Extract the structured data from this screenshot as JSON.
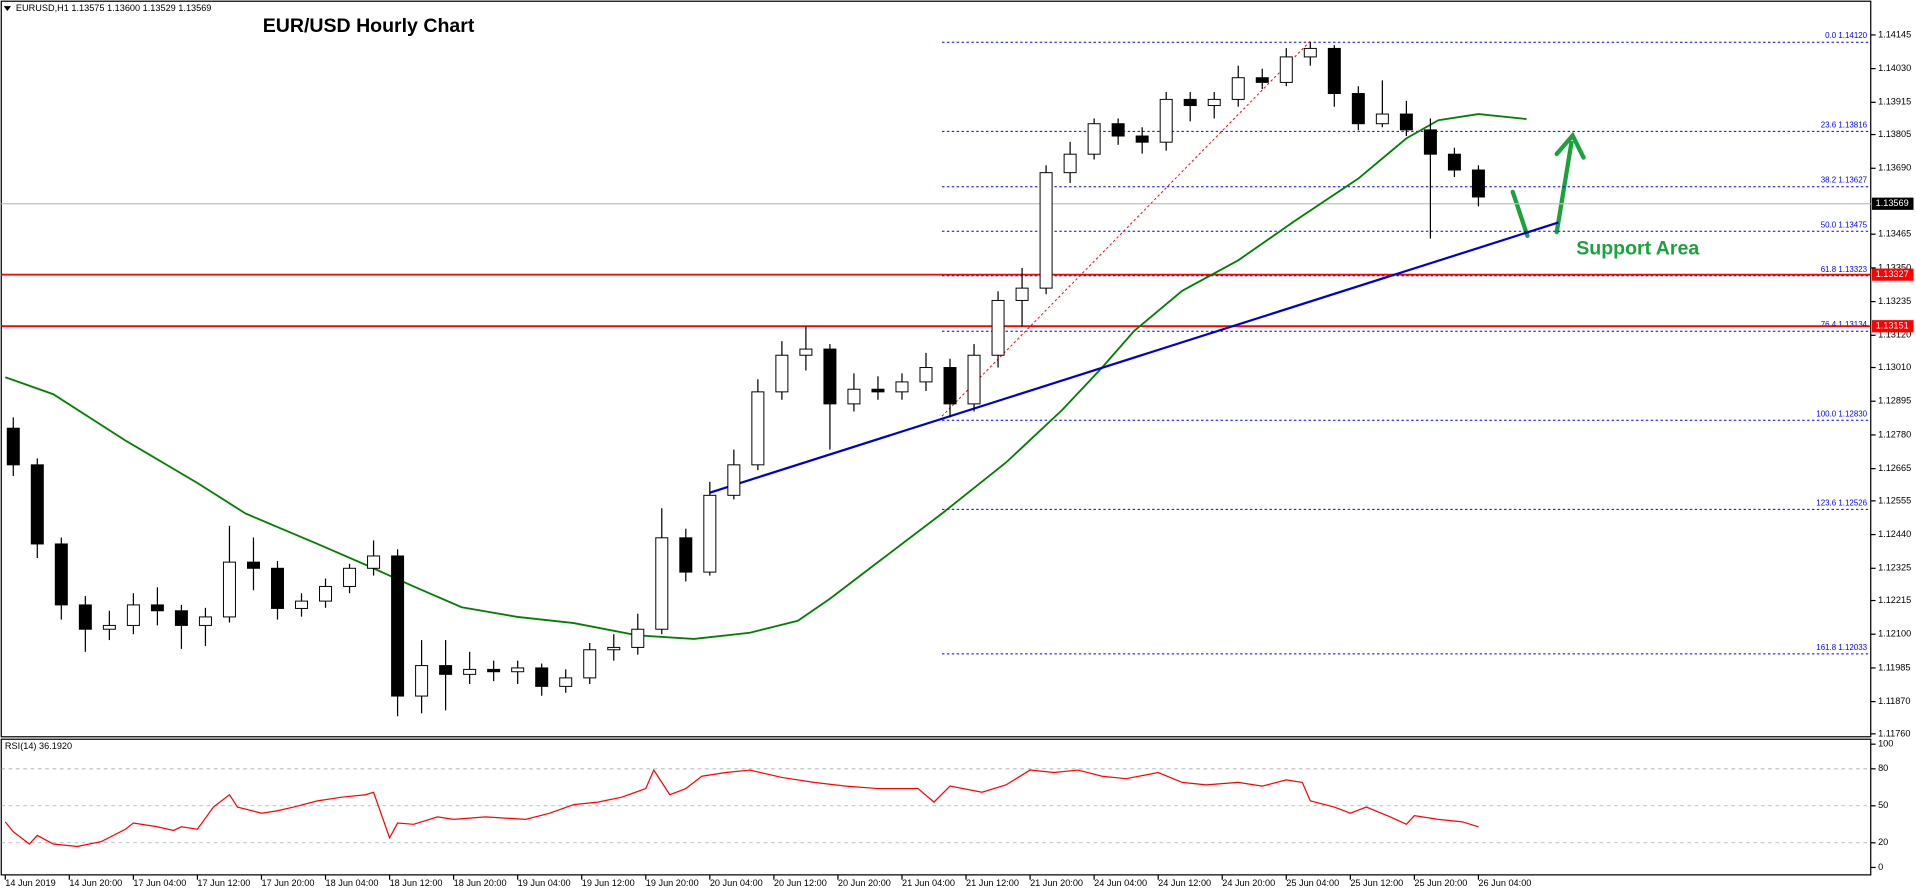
{
  "chart_data": {
    "type": "candlestick",
    "title": "EUR/USD Hourly Chart",
    "header": "EURUSD,H1  1.13575 1.13600 1.13529 1.13569",
    "annotation": "Support Area",
    "xlim": [
      -0.5,
      233
    ],
    "ylim": [
      1.1175,
      1.1426
    ],
    "xticks": [
      {
        "value": 0,
        "label": "14 Jun 2019"
      },
      {
        "value": 8,
        "label": "14 Jun 20:00"
      },
      {
        "value": 16,
        "label": "17 Jun 04:00"
      },
      {
        "value": 24,
        "label": "17 Jun 12:00"
      },
      {
        "value": 32,
        "label": "17 Jun 20:00"
      },
      {
        "value": 40,
        "label": "18 Jun 04:00"
      },
      {
        "value": 48,
        "label": "18 Jun 12:00"
      },
      {
        "value": 56,
        "label": "18 Jun 20:00"
      },
      {
        "value": 64,
        "label": "19 Jun 04:00"
      },
      {
        "value": 72,
        "label": "19 Jun 12:00"
      },
      {
        "value": 80,
        "label": "19 Jun 20:00"
      },
      {
        "value": 88,
        "label": "20 Jun 04:00"
      },
      {
        "value": 96,
        "label": "20 Jun 12:00"
      },
      {
        "value": 104,
        "label": "20 Jun 20:00"
      },
      {
        "value": 112,
        "label": "21 Jun 04:00"
      },
      {
        "value": 120,
        "label": "21 Jun 12:00"
      },
      {
        "value": 128,
        "label": "21 Jun 20:00"
      },
      {
        "value": 136,
        "label": "24 Jun 04:00"
      },
      {
        "value": 144,
        "label": "24 Jun 12:00"
      },
      {
        "value": 152,
        "label": "24 Jun 20:00"
      },
      {
        "value": 160,
        "label": "25 Jun 04:00"
      },
      {
        "value": 168,
        "label": "25 Jun 12:00"
      },
      {
        "value": 176,
        "label": "25 Jun 20:00"
      },
      {
        "value": 184,
        "label": "26 Jun 04:00"
      }
    ],
    "yticks": [
      1.14145,
      {
        "value": 1.1403,
        "label": "1.14030"
      },
      1.13915,
      1.13805,
      {
        "value": 1.1369,
        "label": "1.13690"
      },
      1.13465,
      {
        "value": 1.1335,
        "label": "1.13350"
      },
      1.13235,
      {
        "value": 1.1312,
        "label": "1.13120"
      },
      {
        "value": 1.1301,
        "label": "1.13010"
      },
      1.12895,
      {
        "value": 1.1278,
        "label": "1.12780"
      },
      1.12665,
      1.12555,
      {
        "value": 1.1244,
        "label": "1.12440"
      },
      1.12325,
      1.12215,
      {
        "value": 1.121,
        "label": "1.12100"
      },
      1.11985,
      {
        "value": 1.1187,
        "label": "1.11870"
      },
      {
        "value": 1.1176,
        "label": "1.11760"
      }
    ],
    "up_color": "#ffffff",
    "down_color": "#000000",
    "ohlc": [
      [
        1.12803,
        1.1284,
        1.1264,
        1.12678
      ],
      [
        1.12678,
        1.127,
        1.1236,
        1.12408
      ],
      [
        1.12408,
        1.1243,
        1.1215,
        1.122
      ],
      [
        1.122,
        1.1223,
        1.1204,
        1.12117
      ],
      [
        1.12117,
        1.1218,
        1.1208,
        1.1213
      ],
      [
        1.1213,
        1.1224,
        1.121,
        1.122
      ],
      [
        1.122,
        1.1226,
        1.1213,
        1.1218
      ],
      [
        1.1218,
        1.122,
        1.1205,
        1.1213
      ],
      [
        1.1213,
        1.1219,
        1.1206,
        1.12159
      ],
      [
        1.12159,
        1.1247,
        1.1214,
        1.12346
      ],
      [
        1.12346,
        1.1243,
        1.1225,
        1.12325
      ],
      [
        1.12325,
        1.1235,
        1.1215,
        1.12188
      ],
      [
        1.12188,
        1.1224,
        1.1216,
        1.12213
      ],
      [
        1.12213,
        1.1229,
        1.1219,
        1.12263
      ],
      [
        1.12263,
        1.1234,
        1.1224,
        1.12325
      ],
      [
        1.12325,
        1.1242,
        1.123,
        1.12367
      ],
      [
        1.12367,
        1.1239,
        1.1182,
        1.11889
      ],
      [
        1.11889,
        1.1208,
        1.1183,
        1.11993
      ],
      [
        1.11993,
        1.1208,
        1.1184,
        1.11963
      ],
      [
        1.11963,
        1.1204,
        1.1193,
        1.1198
      ],
      [
        1.1198,
        1.1201,
        1.1194,
        1.11972
      ],
      [
        1.11972,
        1.1201,
        1.1193,
        1.11985
      ],
      [
        1.11985,
        1.12,
        1.1189,
        1.11922
      ],
      [
        1.11922,
        1.1198,
        1.119,
        1.11951
      ],
      [
        1.11951,
        1.1207,
        1.1193,
        1.12047
      ],
      [
        1.12047,
        1.121,
        1.1201,
        1.12055
      ],
      [
        1.12055,
        1.1217,
        1.1203,
        1.12117
      ],
      [
        1.12117,
        1.1253,
        1.121,
        1.12429
      ],
      [
        1.12429,
        1.1246,
        1.1228,
        1.12312
      ],
      [
        1.12312,
        1.1262,
        1.123,
        1.12574
      ],
      [
        1.12574,
        1.1273,
        1.1256,
        1.12678
      ],
      [
        1.12678,
        1.1297,
        1.1266,
        1.12927
      ],
      [
        1.12927,
        1.131,
        1.129,
        1.13052
      ],
      [
        1.13052,
        1.1315,
        1.13,
        1.13073
      ],
      [
        1.13073,
        1.1309,
        1.1273,
        1.12886
      ],
      [
        1.12886,
        1.1299,
        1.1286,
        1.12936
      ],
      [
        1.12936,
        1.1298,
        1.129,
        1.12927
      ],
      [
        1.12927,
        1.1299,
        1.129,
        1.12961
      ],
      [
        1.12961,
        1.1306,
        1.1293,
        1.1301
      ],
      [
        1.1301,
        1.1304,
        1.1284,
        1.12886
      ],
      [
        1.12886,
        1.1309,
        1.1286,
        1.13052
      ],
      [
        1.13052,
        1.1327,
        1.1301,
        1.13239
      ],
      [
        1.13239,
        1.1335,
        1.1315,
        1.13281
      ],
      [
        1.13281,
        1.137,
        1.1326,
        1.13675
      ],
      [
        1.13675,
        1.1378,
        1.1364,
        1.13738
      ],
      [
        1.13738,
        1.1386,
        1.1372,
        1.13842
      ],
      [
        1.13842,
        1.1386,
        1.1377,
        1.138
      ],
      [
        1.138,
        1.1383,
        1.1374,
        1.13779
      ],
      [
        1.13779,
        1.1395,
        1.1375,
        1.13925
      ],
      [
        1.13925,
        1.1395,
        1.1385,
        1.13904
      ],
      [
        1.13904,
        1.1395,
        1.1386,
        1.13925
      ],
      [
        1.13925,
        1.1404,
        1.139,
        1.13999
      ],
      [
        1.13999,
        1.1403,
        1.1396,
        1.13983
      ],
      [
        1.13983,
        1.141,
        1.1397,
        1.1407
      ],
      [
        1.1407,
        1.1412,
        1.1404,
        1.14099
      ],
      [
        1.14099,
        1.1411,
        1.139,
        1.13945
      ],
      [
        1.13945,
        1.1397,
        1.1382,
        1.13842
      ],
      [
        1.13842,
        1.1399,
        1.1383,
        1.13875
      ],
      [
        1.13875,
        1.1392,
        1.138,
        1.13821
      ],
      [
        1.13821,
        1.1386,
        1.1345,
        1.13738
      ],
      [
        1.13738,
        1.1376,
        1.1366,
        1.13684
      ],
      [
        1.13684,
        1.137,
        1.1356,
        1.13592
      ]
    ],
    "ma": {
      "color": "#008000",
      "x": [
        0,
        6,
        15,
        24,
        30,
        39,
        45,
        51,
        57,
        64,
        71,
        79,
        86,
        93,
        99,
        103,
        109,
        117,
        125,
        132,
        137,
        141,
        147,
        154,
        161,
        169,
        175,
        179,
        184,
        190
      ],
      "values": [
        1.12977,
        1.12919,
        1.12761,
        1.12616,
        1.12512,
        1.12408,
        1.12337,
        1.12263,
        1.12192,
        1.12159,
        1.12138,
        1.12096,
        1.12084,
        1.12105,
        1.12146,
        1.12221,
        1.12346,
        1.12512,
        1.12686,
        1.12865,
        1.1301,
        1.13135,
        1.13272,
        1.13376,
        1.13509,
        1.13655,
        1.13792,
        1.13854,
        1.13875,
        1.13858
      ]
    },
    "trendline": {
      "color": "#0000cc",
      "x": [
        88,
        194
      ],
      "values": [
        1.12583,
        1.13505
      ]
    },
    "fib_trend": {
      "color": "#ff0000",
      "x": [
        117,
        163
      ],
      "values": [
        1.12844,
        1.14124
      ]
    },
    "fib_color": "#0000ff",
    "fib_start": 117,
    "fib": [
      {
        "value": 1.1412,
        "label": "0.0 1.14120"
      },
      {
        "value": 1.13816,
        "label": "23.6 1.13816"
      },
      {
        "value": 1.13627,
        "label": "38.2 1.13627"
      },
      {
        "value": 1.13475,
        "label": "50.0 1.13475"
      },
      {
        "value": 1.13323,
        "label": "61.8 1.13323"
      },
      {
        "value": 1.13134,
        "label": "76.4 1.13134"
      },
      {
        "value": 1.1283,
        "label": "100.0 1.12830"
      },
      {
        "value": 1.12526,
        "label": "123.6 1.12526"
      },
      {
        "value": 1.12033,
        "label": "161.8 1.12033"
      }
    ],
    "levels": [
      {
        "value": 1.13327,
        "color": "#ff0000"
      },
      {
        "value": 1.13151,
        "color": "#ff0000"
      }
    ],
    "current": {
      "value": 1.13569,
      "color": "#c0c0c0"
    },
    "rsi": {
      "label": "RSI(14) 36.1920",
      "color": "#ff0000",
      "ylim": [
        -6,
        104
      ],
      "yticks": [
        100,
        80,
        50,
        20,
        0
      ],
      "grid": [
        80,
        50,
        20
      ],
      "x": [
        0,
        1,
        3,
        4,
        6,
        9,
        12,
        15,
        16,
        19,
        21,
        22,
        24,
        26,
        28,
        29,
        32,
        34,
        36,
        39,
        42,
        45,
        46,
        48,
        49,
        51,
        54,
        56,
        60,
        65,
        68,
        71,
        74,
        77,
        80,
        81,
        83,
        85,
        87,
        90,
        93,
        97,
        101,
        105,
        109,
        114,
        116,
        118,
        122,
        125,
        128,
        131,
        134,
        137,
        140,
        144,
        147,
        150,
        154,
        157,
        160,
        162,
        163,
        166,
        168,
        170,
        173,
        175,
        176,
        179,
        182,
        184
      ],
      "values": [
        37,
        29,
        19,
        26,
        19,
        17,
        21,
        31,
        36,
        33,
        30,
        33,
        31,
        49,
        59,
        49,
        44,
        46,
        49,
        54,
        57,
        59,
        61,
        24,
        36,
        35,
        41,
        39,
        41,
        39,
        44,
        51,
        53,
        57,
        64,
        79,
        59,
        64,
        74,
        77,
        79,
        73,
        69,
        66,
        64,
        64,
        53,
        66,
        61,
        67,
        79,
        77,
        79,
        74,
        72,
        77,
        69,
        67,
        69,
        66,
        71,
        69,
        54,
        49,
        44,
        49,
        41,
        35,
        42,
        39,
        37,
        33
      ]
    }
  }
}
